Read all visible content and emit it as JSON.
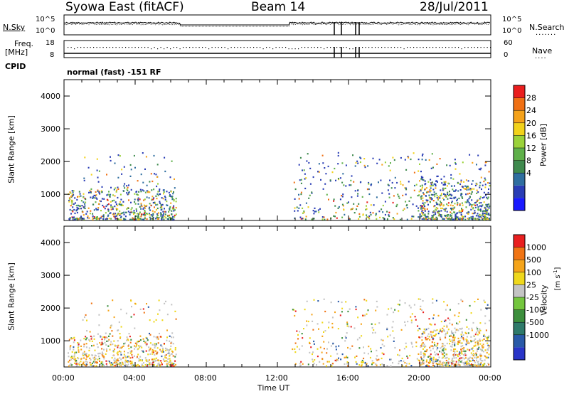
{
  "header": {
    "title_left": "Syowa East (fitACF)",
    "title_center": "Beam 14",
    "title_right": "28/Jul/2011"
  },
  "top_panels": {
    "nsky_label": "N.Sky",
    "nsearch_label": "N.Search",
    "noise_ticks": [
      "10^5",
      "10^0"
    ],
    "freq_label": "Freq.",
    "freq_unit": "[MHz]",
    "freq_ticks": [
      "18",
      "8"
    ],
    "nave_ticks": [
      "60",
      "0"
    ],
    "nave_label": "Nave",
    "cpid_label": "CPID",
    "cpid_value": "normal (fast) -151 RF"
  },
  "x_axis": {
    "label": "Time UT",
    "ticks": [
      "00:00",
      "04:00",
      "08:00",
      "12:00",
      "16:00",
      "20:00",
      "00:00"
    ]
  },
  "colors": {
    "power": [
      "#1a1aff",
      "#2a3db5",
      "#2f6e9f",
      "#3f8a4e",
      "#5fb04a",
      "#9bd23a",
      "#f2d21b",
      "#f5a21a",
      "#f07014",
      "#ea1e1e"
    ],
    "velocity": [
      "#2a35c8",
      "#2a5aa8",
      "#2f7a6a",
      "#3d8f3d",
      "#74c63e",
      "#c4c4c4",
      "#efd81c",
      "#f5a41a",
      "#f07414",
      "#e92020"
    ]
  },
  "chart_data": [
    {
      "type": "heatmap",
      "name": "Power",
      "ylabel": "Slant Range [km]",
      "xlabel": "Time UT",
      "x_ticks": [
        "00:00",
        "04:00",
        "08:00",
        "12:00",
        "16:00",
        "20:00",
        "00:00"
      ],
      "y_ticks": [
        "1000",
        "2000",
        "3000",
        "4000"
      ],
      "ylim": [
        200,
        4500
      ],
      "colorbar": {
        "label": "Power [dB]",
        "ticks": [
          "28",
          "24",
          "20",
          "16",
          "12",
          "8",
          "4"
        ]
      },
      "coverage_hours": [
        [
          0,
          6.5
        ],
        [
          12.7,
          24
        ]
      ]
    },
    {
      "type": "heatmap",
      "name": "Velocity",
      "ylabel": "Slant Range [km]",
      "xlabel": "Time UT",
      "x_ticks": [
        "00:00",
        "04:00",
        "08:00",
        "12:00",
        "16:00",
        "20:00",
        "00:00"
      ],
      "y_ticks": [
        "1000",
        "2000",
        "3000",
        "4000"
      ],
      "ylim": [
        200,
        4500
      ],
      "colorbar": {
        "label": "Velocity",
        "unit": "[m s-1]",
        "ticks": [
          "1000",
          "500",
          "100",
          "25",
          "-25",
          "-100",
          "-500",
          "-1000"
        ]
      },
      "coverage_hours": [
        [
          0,
          6.5
        ],
        [
          12.7,
          24
        ]
      ]
    }
  ]
}
